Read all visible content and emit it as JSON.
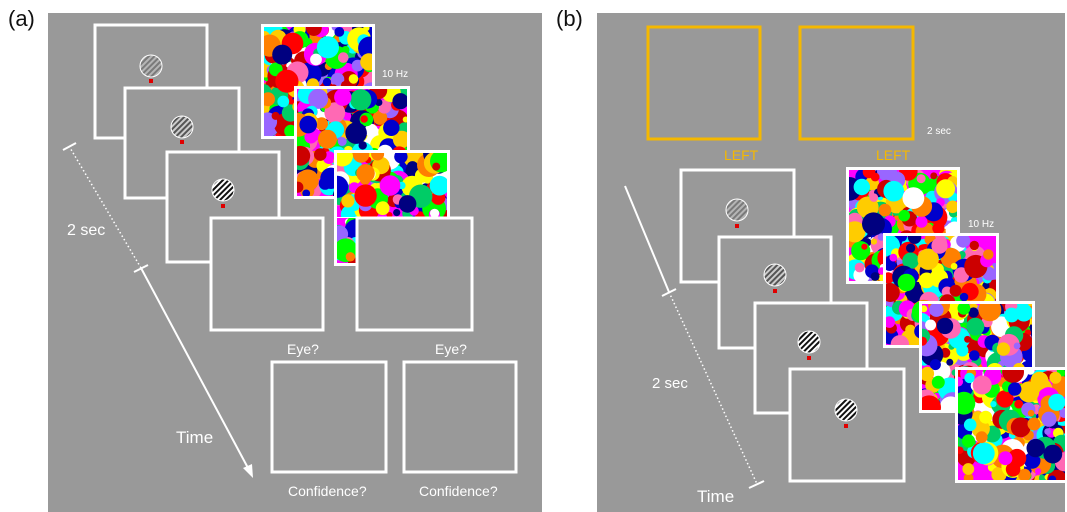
{
  "panel_a": {
    "letter": "(a)",
    "rate_label": "10 Hz",
    "duration_label": "2 sec",
    "time_label": "Time",
    "eye_prompt_1": "Eye?",
    "eye_prompt_2": "Eye?",
    "confidence_prompt_1": "Confidence?",
    "confidence_prompt_2": "Confidence?"
  },
  "panel_b": {
    "letter": "(b)",
    "cue_label_1": "LEFT",
    "cue_label_2": "LEFT",
    "cue_duration_label": "2 sec",
    "rate_label": "10 Hz",
    "duration_label": "2 sec",
    "time_label": "Time"
  },
  "colors": {
    "background": "#999999",
    "frame": "#ffffff",
    "cue": "#f5b800",
    "fixation": "#e00000",
    "mondrian": [
      "#ff00ff",
      "#00ff00",
      "#ffff00",
      "#0000cc",
      "#ff0000",
      "#00ffff",
      "#ff8000",
      "#000080",
      "#cc0000",
      "#ff69b4",
      "#ffffff",
      "#00cc66",
      "#9966ff",
      "#ffcc00"
    ]
  }
}
